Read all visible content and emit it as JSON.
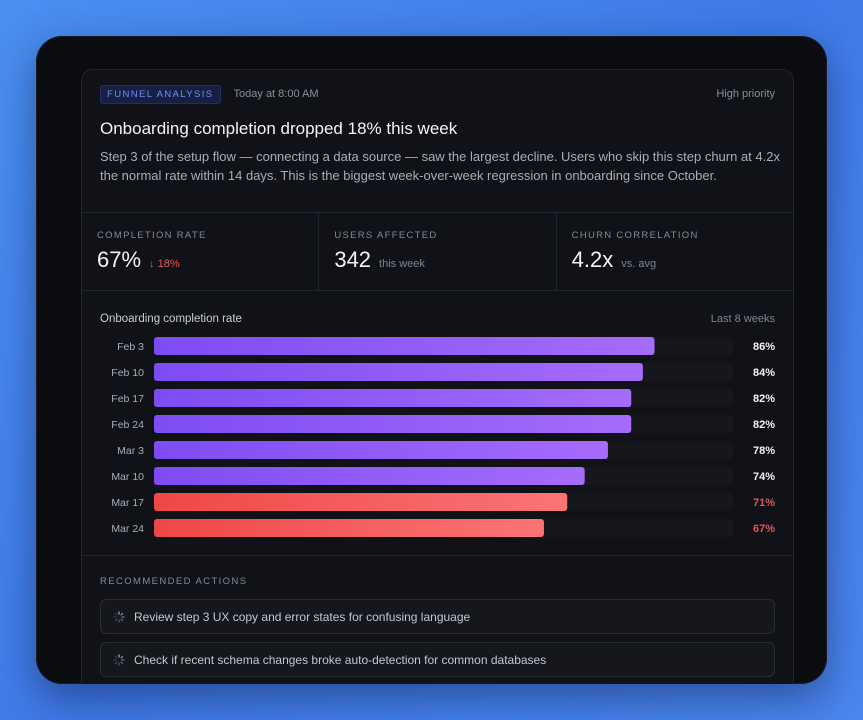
{
  "header": {
    "tag": "FUNNEL ANALYSIS",
    "timestamp": "Today at 8:00 AM",
    "priority": "High priority",
    "title": "Onboarding completion dropped 18% this week",
    "description": "Step 3 of the setup flow — connecting a data source — saw the largest decline. Users who skip this step churn at 4.2x the normal rate within 14 days. This is the biggest week-over-week regression in onboarding since October."
  },
  "stats": [
    {
      "label": "COMPLETION RATE",
      "value": "67%",
      "sub": "↓ 18%"
    },
    {
      "label": "USERS AFFECTED",
      "value": "342",
      "sub": "this week"
    },
    {
      "label": "CHURN CORRELATION",
      "value": "4.2x",
      "sub": "vs. avg"
    }
  ],
  "chart": {
    "title": "Onboarding completion rate",
    "range": "Last 8 weeks"
  },
  "chart_data": {
    "type": "bar",
    "orientation": "horizontal",
    "title": "Onboarding completion rate",
    "categories": [
      "Feb 3",
      "Feb 10",
      "Feb 17",
      "Feb 24",
      "Mar 3",
      "Mar 10",
      "Mar 17",
      "Mar 24"
    ],
    "values": [
      86,
      84,
      82,
      82,
      78,
      74,
      71,
      67
    ],
    "value_labels": [
      "86%",
      "84%",
      "82%",
      "82%",
      "78%",
      "74%",
      "71%",
      "67%"
    ],
    "unit": "%",
    "xlim": [
      0,
      100
    ],
    "highlight_threshold": 72,
    "colors": {
      "normal_start": "#7d4cf4",
      "normal_end": "#a56cfa",
      "alert_start": "#ef4747",
      "alert_end": "#fb7474",
      "track": "#16171c",
      "label_normal": "#f2f3f5",
      "label_alert": "#e2545a"
    }
  },
  "actions": {
    "label": "RECOMMENDED ACTIONS",
    "items": [
      "Review step 3 UX copy and error states for confusing language",
      "Check if recent schema changes broke auto-detection for common databases"
    ]
  }
}
